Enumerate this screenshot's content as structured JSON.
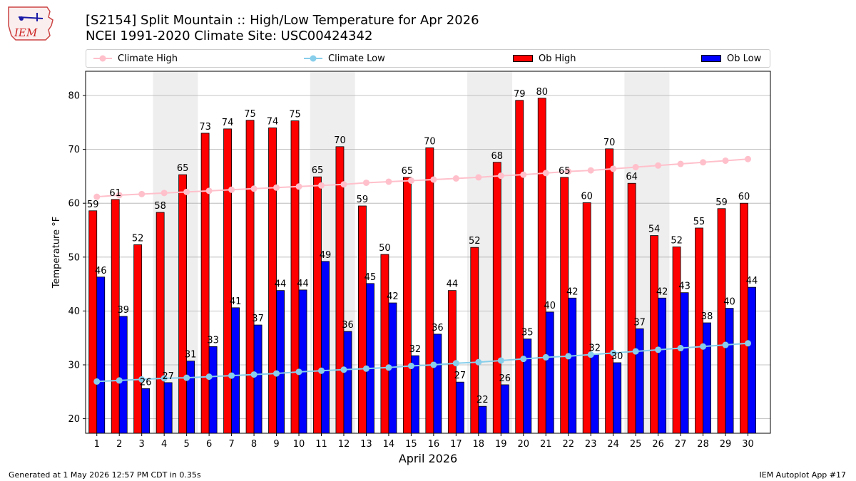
{
  "header": {
    "title_line1": "[S2154] Split Mountain :: High/Low Temperature for Apr 2026",
    "title_line2": "NCEI 1991-2020 Climate Site: USC00424342",
    "logo_text": "IEM"
  },
  "legend": {
    "climate_high": "Climate High",
    "climate_low": "Climate Low",
    "ob_high": "Ob High",
    "ob_low": "Ob Low"
  },
  "footer": {
    "generated": "Generated at 1 May 2026 12:57 PM CDT in 0.35s",
    "app": "IEM Autoplot App #17"
  },
  "colors": {
    "ob_high": "#ff0000",
    "ob_low": "#0000ff",
    "climate_high": "#ffc0cb",
    "climate_low": "#87ceeb",
    "weekend_shade": "#eeeeee",
    "grid": "#b0b0b0"
  },
  "chart_data": {
    "type": "bar",
    "xlabel": "April 2026",
    "ylabel": "Temperature °F",
    "ylim": [
      17.3,
      84.5
    ],
    "yticks": [
      20,
      30,
      40,
      50,
      60,
      70,
      80
    ],
    "grid": "horizontal",
    "legend_position": "top",
    "shaded_day_pairs": [
      [
        4,
        5
      ],
      [
        11,
        12
      ],
      [
        18,
        19
      ],
      [
        25,
        26
      ]
    ],
    "categories": [
      "1",
      "2",
      "3",
      "4",
      "5",
      "6",
      "7",
      "8",
      "9",
      "10",
      "11",
      "12",
      "13",
      "14",
      "15",
      "16",
      "17",
      "18",
      "19",
      "20",
      "21",
      "22",
      "23",
      "24",
      "25",
      "26",
      "27",
      "28",
      "29",
      "30"
    ],
    "series": [
      {
        "name": "Ob High",
        "type": "bar",
        "values": [
          58.6,
          60.7,
          52.3,
          58.3,
          65.3,
          73.0,
          73.8,
          75.4,
          74.0,
          75.3,
          64.9,
          70.5,
          59.5,
          50.5,
          64.8,
          70.3,
          43.8,
          51.8,
          67.6,
          79.1,
          79.5,
          64.8,
          60.1,
          70.1,
          63.7,
          54.0,
          51.9,
          55.4,
          59.0,
          60.0
        ],
        "labels": [
          "59",
          "61",
          "52",
          "58",
          "65",
          "73",
          "74",
          "75",
          "74",
          "75",
          "65",
          "70",
          "59",
          "50",
          "65",
          "70",
          "44",
          "52",
          "68",
          "79",
          "80",
          "65",
          "60",
          "70",
          "64",
          "54",
          "52",
          "55",
          "59",
          "60"
        ]
      },
      {
        "name": "Ob Low",
        "type": "bar",
        "values": [
          46.3,
          39.0,
          25.6,
          26.7,
          30.7,
          33.4,
          40.6,
          37.4,
          43.8,
          43.9,
          49.2,
          36.2,
          45.1,
          41.5,
          31.7,
          35.7,
          26.8,
          22.3,
          26.3,
          34.8,
          39.8,
          42.4,
          31.9,
          30.4,
          36.7,
          42.4,
          43.4,
          37.8,
          40.5,
          44.4
        ],
        "labels": [
          "46",
          "39",
          "26",
          "27",
          "31",
          "33",
          "41",
          "37",
          "44",
          "44",
          "49",
          "36",
          "45",
          "42",
          "32",
          "36",
          "27",
          "22",
          "26",
          "35",
          "40",
          "42",
          "32",
          "30",
          "37",
          "42",
          "43",
          "38",
          "40",
          "44"
        ]
      },
      {
        "name": "Climate High",
        "type": "line",
        "values": [
          61.2,
          61.5,
          61.7,
          61.9,
          62.1,
          62.3,
          62.5,
          62.7,
          62.9,
          63.1,
          63.3,
          63.5,
          63.8,
          64.0,
          64.2,
          64.4,
          64.6,
          64.8,
          65.1,
          65.3,
          65.6,
          65.9,
          66.1,
          66.4,
          66.7,
          67.0,
          67.3,
          67.6,
          67.9,
          68.2
        ]
      },
      {
        "name": "Climate Low",
        "type": "line",
        "values": [
          26.9,
          27.1,
          27.3,
          27.5,
          27.6,
          27.8,
          28.0,
          28.2,
          28.4,
          28.7,
          28.9,
          29.1,
          29.3,
          29.5,
          29.8,
          30.0,
          30.3,
          30.5,
          30.8,
          31.1,
          31.4,
          31.6,
          31.9,
          32.2,
          32.5,
          32.8,
          33.1,
          33.4,
          33.7,
          34.0
        ]
      }
    ]
  }
}
